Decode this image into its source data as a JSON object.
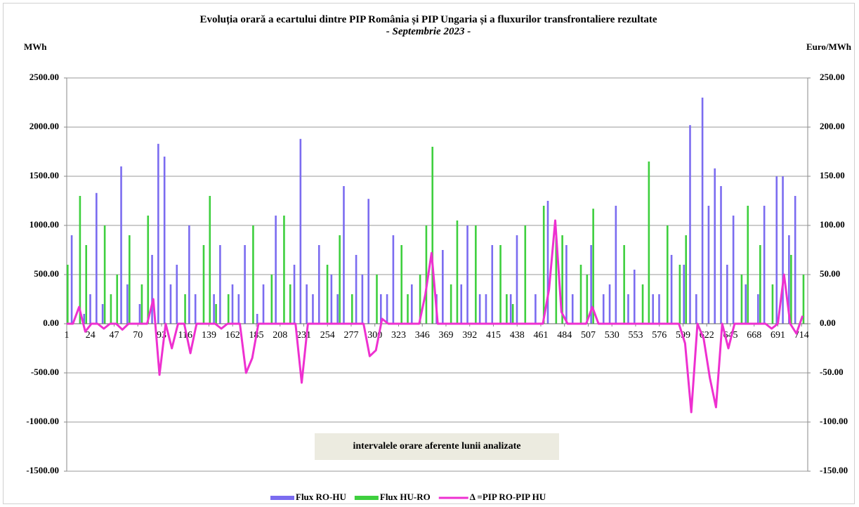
{
  "chart_data": {
    "type": "bar-line",
    "title": "Evoluția orară a ecartului dintre PIP România și PIP Ungaria și a fluxurilor transfrontaliere rezultate",
    "subtitle": "- Septembrie 2023 -",
    "ylabel": "MWh",
    "y2label": "Euro/MWh",
    "annotation": "intervalele orare aferente lunii analizate",
    "x": [
      1,
      7,
      13,
      19,
      25,
      31,
      37,
      43,
      49,
      55,
      61,
      67,
      73,
      79,
      85,
      91,
      97,
      103,
      109,
      115,
      121,
      127,
      133,
      139,
      145,
      151,
      157,
      163,
      169,
      175,
      181,
      187,
      193,
      199,
      205,
      211,
      217,
      223,
      229,
      235,
      241,
      247,
      253,
      259,
      265,
      271,
      277,
      283,
      289,
      295,
      301,
      307,
      313,
      319,
      325,
      331,
      337,
      343,
      349,
      355,
      361,
      367,
      373,
      379,
      385,
      391,
      397,
      403,
      409,
      415,
      421,
      427,
      433,
      439,
      445,
      451,
      457,
      463,
      469,
      475,
      481,
      487,
      493,
      499,
      505,
      511,
      517,
      523,
      529,
      535,
      541,
      547,
      553,
      559,
      565,
      571,
      577,
      583,
      589,
      595,
      601,
      607,
      613,
      619,
      625,
      631,
      637,
      643,
      649,
      655,
      661,
      667,
      673,
      679,
      685,
      691,
      697,
      703,
      709,
      715
    ],
    "xlim": [
      1,
      720
    ],
    "xticks": [
      1,
      24,
      47,
      70,
      93,
      116,
      139,
      162,
      185,
      208,
      231,
      254,
      277,
      300,
      323,
      346,
      369,
      392,
      415,
      438,
      461,
      484,
      507,
      530,
      553,
      576,
      599,
      622,
      645,
      668,
      691,
      714
    ],
    "ylim": [
      -1500,
      2500
    ],
    "yticks": [
      {
        "value": -1500,
        "label": "-1500.00"
      },
      {
        "value": -1000,
        "label": "-1000.00"
      },
      {
        "value": -500,
        "label": "-500.00"
      },
      {
        "value": 0,
        "label": "0.00"
      },
      {
        "value": 500,
        "label": "500.00"
      },
      {
        "value": 1000,
        "label": "1000.00"
      },
      {
        "value": 1500,
        "label": "1500.00"
      },
      {
        "value": 2000,
        "label": "2000.00"
      },
      {
        "value": 2500,
        "label": "2500.00"
      }
    ],
    "y2lim": [
      -150,
      250
    ],
    "y2ticks": [
      {
        "value": -150,
        "label": "-150.00"
      },
      {
        "value": -100,
        "label": "-100.00"
      },
      {
        "value": -50,
        "label": "-50.00"
      },
      {
        "value": 0,
        "label": "0.00"
      },
      {
        "value": 50,
        "label": "50.00"
      },
      {
        "value": 100,
        "label": "100.00"
      },
      {
        "value": 150,
        "label": "150.00"
      },
      {
        "value": 200,
        "label": "200.00"
      },
      {
        "value": 250,
        "label": "250.00"
      }
    ],
    "grid": true,
    "series": [
      {
        "name": "Flux RO-HU",
        "color": "#7b6cf0",
        "kind": "bar",
        "values": [
          0,
          900,
          0,
          100,
          300,
          1330,
          200,
          0,
          0,
          1600,
          400,
          0,
          200,
          0,
          700,
          1830,
          1700,
          400,
          600,
          0,
          1000,
          300,
          0,
          0,
          300,
          800,
          0,
          400,
          300,
          800,
          0,
          100,
          400,
          0,
          1100,
          0,
          0,
          600,
          1880,
          400,
          300,
          800,
          0,
          500,
          300,
          1400,
          0,
          700,
          500,
          1270,
          0,
          300,
          300,
          900,
          0,
          0,
          400,
          0,
          0,
          0,
          300,
          750,
          0,
          0,
          400,
          1000,
          0,
          300,
          300,
          800,
          0,
          0,
          300,
          900,
          0,
          0,
          300,
          0,
          1250,
          0,
          0,
          800,
          300,
          0,
          0,
          800,
          0,
          300,
          400,
          1200,
          0,
          300,
          550,
          0,
          0,
          300,
          300,
          0,
          700,
          0,
          600,
          2020,
          300,
          2300,
          1200,
          1580,
          1400,
          600,
          1100,
          0,
          400,
          0,
          300,
          1200,
          0,
          1500,
          1500,
          900,
          1300,
          0
        ]
      },
      {
        "name": "Flux HU-RO",
        "color": "#3ecf3e",
        "kind": "bar",
        "values": [
          600,
          0,
          1300,
          800,
          0,
          0,
          1000,
          300,
          500,
          0,
          900,
          0,
          400,
          1100,
          0,
          0,
          0,
          0,
          0,
          300,
          0,
          0,
          800,
          1300,
          200,
          0,
          300,
          0,
          0,
          0,
          1000,
          0,
          0,
          500,
          0,
          1100,
          400,
          0,
          0,
          0,
          0,
          0,
          600,
          0,
          900,
          0,
          300,
          0,
          0,
          0,
          500,
          0,
          0,
          0,
          800,
          300,
          0,
          500,
          1000,
          1800,
          0,
          0,
          400,
          1050,
          0,
          0,
          1000,
          0,
          0,
          0,
          800,
          300,
          200,
          0,
          1000,
          0,
          0,
          1200,
          0,
          900,
          900,
          0,
          0,
          600,
          500,
          1170,
          0,
          0,
          0,
          0,
          800,
          0,
          0,
          400,
          1650,
          0,
          0,
          1000,
          0,
          600,
          900,
          0,
          0,
          0,
          0,
          0,
          0,
          0,
          0,
          500,
          1200,
          0,
          800,
          0,
          400,
          0,
          0,
          700,
          0,
          500
        ]
      },
      {
        "name": "Δ =PIP RO-PIP HU",
        "color": "#ee30d0",
        "kind": "line",
        "axis": "y2",
        "values": [
          0,
          0,
          17,
          -8,
          0,
          0,
          -5,
          0,
          0,
          -6,
          0,
          0,
          0,
          0,
          25,
          -52,
          0,
          -25,
          0,
          0,
          -30,
          0,
          0,
          0,
          0,
          -5,
          0,
          0,
          0,
          -50,
          -35,
          0,
          0,
          0,
          0,
          0,
          0,
          0,
          -60,
          0,
          0,
          0,
          0,
          0,
          0,
          0,
          0,
          0,
          0,
          -33,
          -27,
          5,
          0,
          0,
          0,
          0,
          0,
          0,
          30,
          72,
          0,
          0,
          0,
          0,
          0,
          0,
          0,
          0,
          0,
          0,
          0,
          0,
          0,
          0,
          0,
          0,
          0,
          0,
          35,
          105,
          12,
          0,
          0,
          0,
          0,
          17,
          0,
          0,
          0,
          0,
          0,
          0,
          0,
          0,
          0,
          0,
          0,
          0,
          0,
          0,
          -20,
          -90,
          0,
          -15,
          -55,
          -85,
          0,
          -25,
          0,
          0,
          0,
          0,
          0,
          0,
          -5,
          0,
          50,
          0,
          -10,
          8
        ]
      }
    ]
  }
}
